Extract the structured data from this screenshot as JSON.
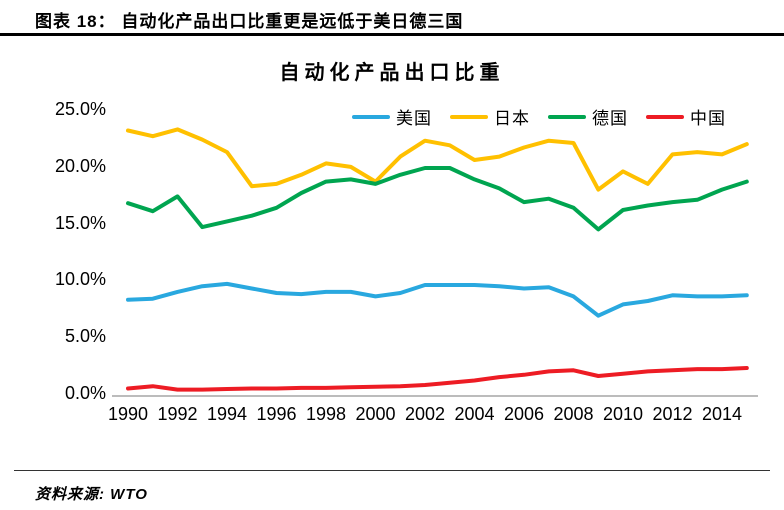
{
  "header": {
    "caption": "图表 18：  自动化产品出口比重更是远低于美日德三国"
  },
  "footer": {
    "source": "资料来源: WTO"
  },
  "chart_data": {
    "type": "line",
    "title": "自动化产品出口比重",
    "x": [
      1990,
      1991,
      1992,
      1993,
      1994,
      1995,
      1996,
      1997,
      1998,
      1999,
      2000,
      2001,
      2002,
      2003,
      2004,
      2005,
      2006,
      2007,
      2008,
      2009,
      2010,
      2011,
      2012,
      2013,
      2014,
      2015
    ],
    "x_tick_labels": [
      "1990",
      "1992",
      "1994",
      "1996",
      "1998",
      "2000",
      "2002",
      "2004",
      "2006",
      "2008",
      "2010",
      "2012",
      "2014"
    ],
    "y_tick_labels": [
      "25.0%",
      "20.0%",
      "15.0%",
      "10.0%",
      "5.0%",
      "0.0%"
    ],
    "ylim": [
      0,
      25
    ],
    "y_unit": "%",
    "grid": false,
    "legend_position": "top-center",
    "axis_color": "#a6a6a6",
    "series": [
      {
        "name": "美国",
        "color": "#29a8df",
        "values": [
          8.2,
          8.3,
          8.9,
          9.4,
          9.6,
          9.2,
          8.8,
          8.7,
          8.9,
          8.9,
          8.5,
          8.8,
          9.5,
          9.5,
          9.5,
          9.4,
          9.2,
          9.3,
          8.5,
          6.8,
          7.8,
          8.1,
          8.6,
          8.5,
          8.5,
          8.6
        ]
      },
      {
        "name": "日本",
        "color": "#ffc000",
        "values": [
          23.1,
          22.6,
          23.2,
          22.3,
          21.2,
          18.2,
          18.4,
          19.2,
          20.2,
          19.9,
          18.6,
          20.8,
          22.2,
          21.8,
          20.5,
          20.8,
          21.6,
          22.2,
          22.0,
          17.9,
          19.5,
          18.4,
          21.0,
          21.2,
          21.0,
          21.9
        ]
      },
      {
        "name": "德国",
        "color": "#00a550",
        "values": [
          16.7,
          16.0,
          17.3,
          14.6,
          15.1,
          15.6,
          16.3,
          17.6,
          18.6,
          18.8,
          18.4,
          19.2,
          19.8,
          19.8,
          18.8,
          18.0,
          16.8,
          17.1,
          16.3,
          14.4,
          16.1,
          16.5,
          16.8,
          17.0,
          17.9,
          18.6
        ]
      },
      {
        "name": "中国",
        "color": "#ed1c24",
        "values": [
          0.4,
          0.6,
          0.3,
          0.3,
          0.35,
          0.4,
          0.4,
          0.45,
          0.45,
          0.5,
          0.55,
          0.6,
          0.7,
          0.9,
          1.1,
          1.4,
          1.6,
          1.9,
          2.0,
          1.5,
          1.7,
          1.9,
          2.0,
          2.1,
          2.1,
          2.2
        ]
      }
    ]
  }
}
